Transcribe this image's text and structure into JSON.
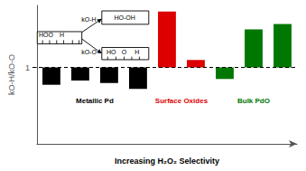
{
  "chart_data": {
    "type": "bar",
    "categories": [
      null,
      null,
      null,
      null,
      null,
      null,
      null,
      null,
      null
    ],
    "baseline": 1,
    "series": [
      {
        "name": "Metallic Pd",
        "color": "#000000",
        "values": [
          0.58,
          0.68,
          0.62,
          0.48,
          null,
          null,
          null,
          null,
          null
        ]
      },
      {
        "name": "Surface Oxides",
        "color": "#dd0000",
        "values": [
          null,
          null,
          null,
          null,
          2.35,
          1.18,
          null,
          null,
          null
        ]
      },
      {
        "name": "Bulk PdO",
        "color": "#007700",
        "values": [
          null,
          null,
          null,
          null,
          null,
          null,
          0.72,
          1.92,
          2.05
        ]
      }
    ],
    "ylabel": "kO-H/kO-O",
    "xlabel": "Increasing H₂O₂ Selectivity",
    "ylim": [
      -0.85,
      2.5
    ],
    "yticks": [
      1
    ],
    "grid": false,
    "tick_labels": "y",
    "inset": {
      "start": [
        "HOO",
        "H"
      ],
      "top": [
        "HO-OH"
      ],
      "bottom": [
        "HO",
        "O",
        "H"
      ],
      "top_rate": "kO-H",
      "bottom_rate": "kO-O"
    }
  }
}
